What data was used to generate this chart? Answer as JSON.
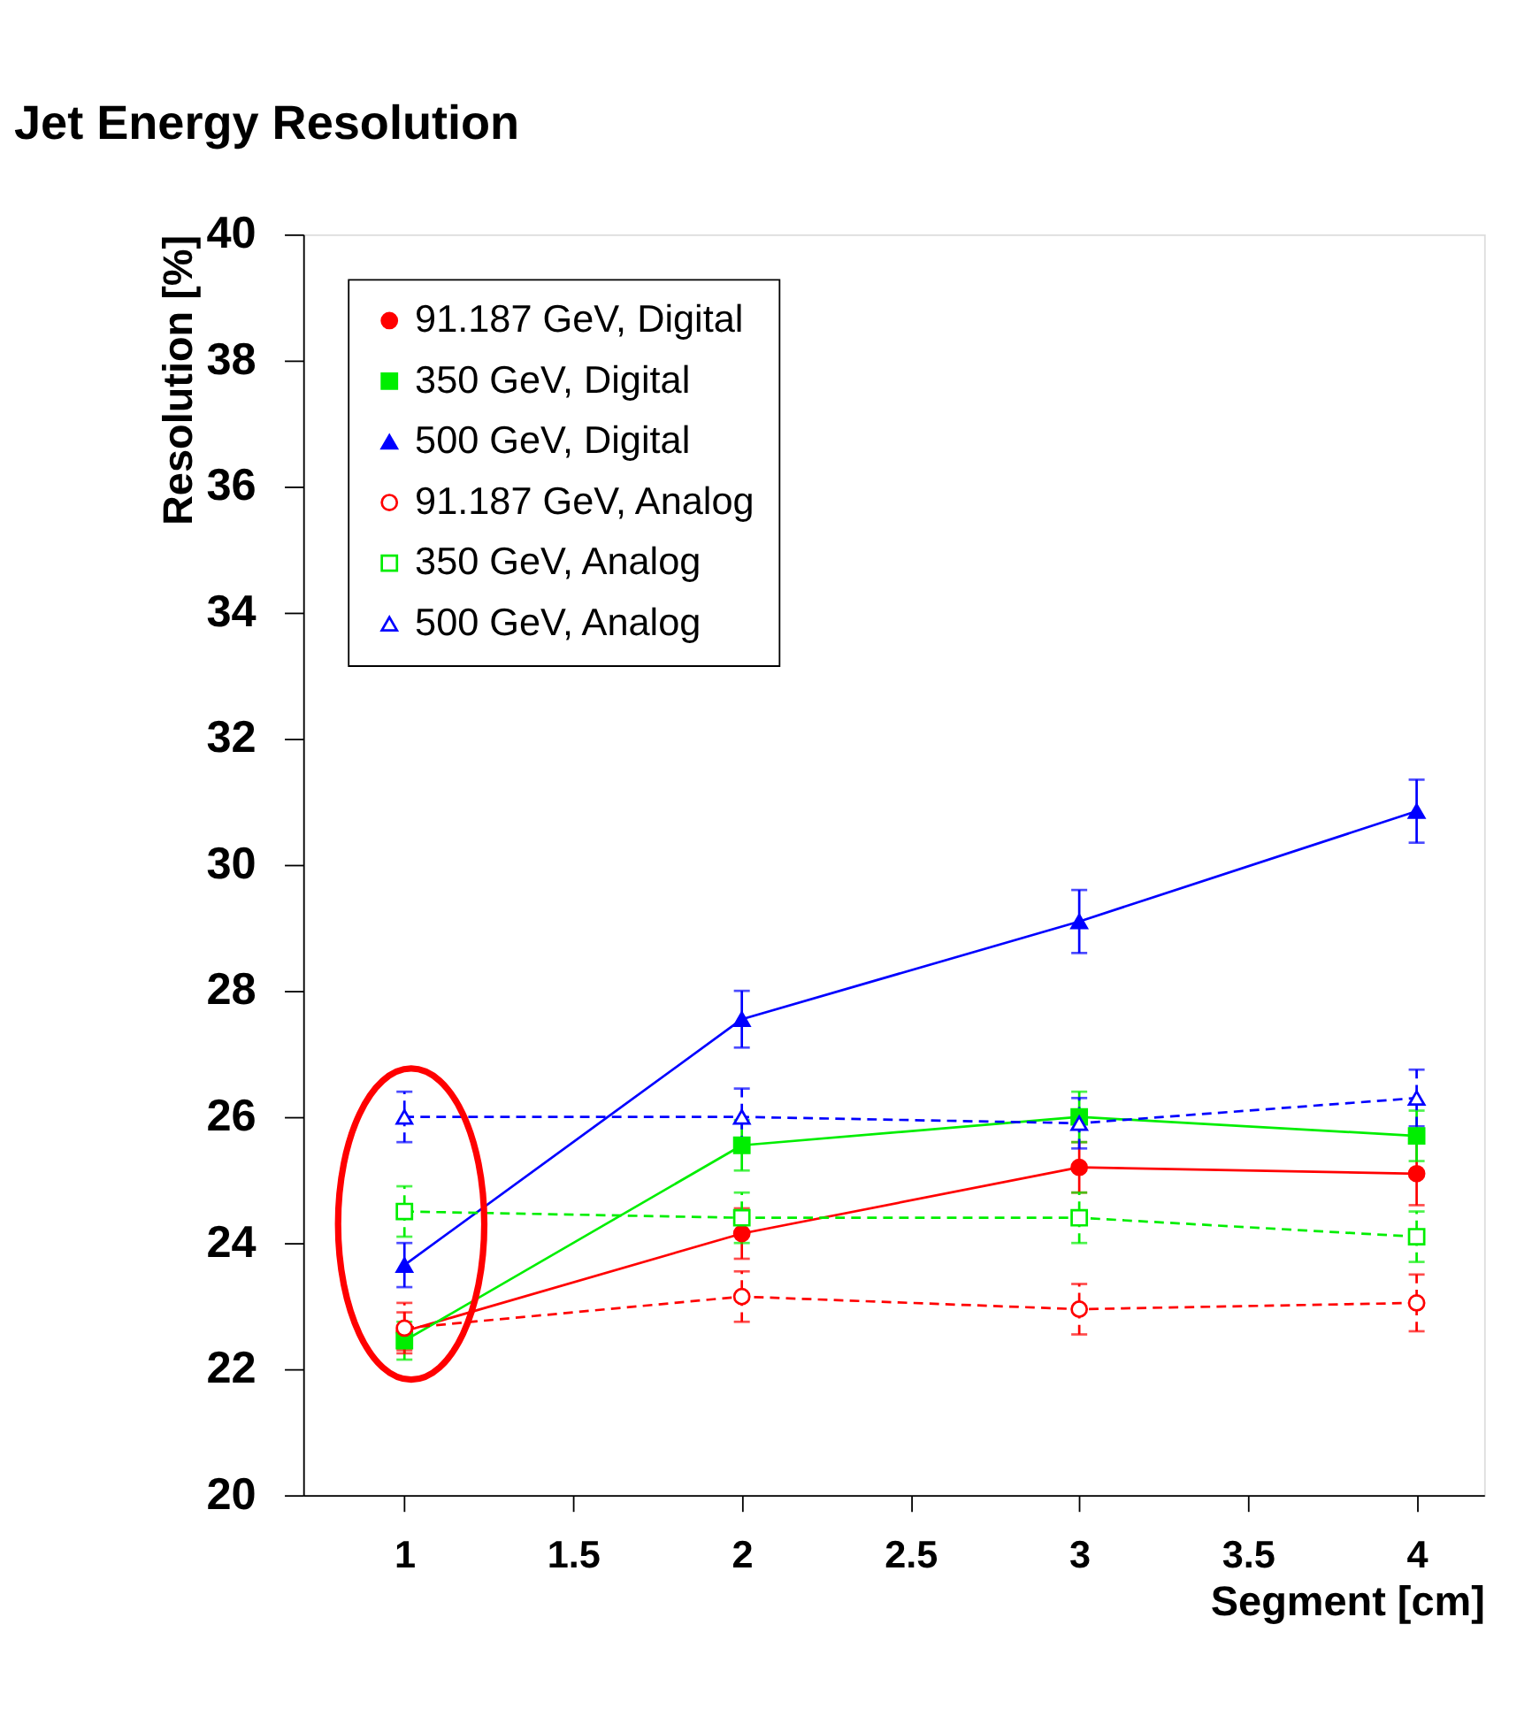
{
  "chart_data": {
    "type": "line",
    "title": "Jet Energy Resolution",
    "xlabel": "Segment [cm]",
    "ylabel": "Resolution [%]",
    "x": [
      1,
      2,
      3,
      4
    ],
    "xlim": [
      0.7,
      4.2
    ],
    "xticks": [
      1,
      1.5,
      2,
      2.5,
      3,
      3.5,
      4
    ],
    "ylim": [
      20,
      40
    ],
    "yticks": [
      20,
      22,
      24,
      26,
      28,
      30,
      32,
      34,
      36,
      38,
      40
    ],
    "grid": false,
    "legend": "top left",
    "series": [
      {
        "name": "91.187 GeV, Digital",
        "color": "#ff0000",
        "marker": "circle",
        "line_style": "solid",
        "values": [
          22.6,
          24.15,
          25.2,
          25.1
        ],
        "errors": [
          0.3,
          0.4,
          0.4,
          0.5
        ]
      },
      {
        "name": "350 GeV, Digital",
        "color": "#00ee00",
        "marker": "square",
        "line_style": "solid",
        "values": [
          22.45,
          25.55,
          26.0,
          25.7
        ],
        "errors": [
          0.3,
          0.4,
          0.4,
          0.4
        ]
      },
      {
        "name": "500 GeV, Digital",
        "color": "#0000ff",
        "marker": "triangle",
        "line_style": "solid",
        "values": [
          23.65,
          27.55,
          29.1,
          30.85
        ],
        "errors": [
          0.35,
          0.45,
          0.5,
          0.5
        ]
      },
      {
        "name": "91.187 GeV, Analog",
        "color": "#ff0000",
        "marker": "circle",
        "line_style": "dashed",
        "values": [
          22.65,
          23.15,
          22.95,
          23.05
        ],
        "errors": [
          0.4,
          0.4,
          0.4,
          0.45
        ]
      },
      {
        "name": "350 GeV, Analog",
        "color": "#00ee00",
        "marker": "square",
        "line_style": "dashed",
        "values": [
          24.5,
          24.4,
          24.4,
          24.1
        ],
        "errors": [
          0.4,
          0.4,
          0.4,
          0.4
        ]
      },
      {
        "name": "500 GeV, Analog",
        "color": "#0000ff",
        "marker": "triangle",
        "line_style": "dashed",
        "values": [
          26.0,
          26.0,
          25.9,
          26.3
        ],
        "errors": [
          0.4,
          0.45,
          0.4,
          0.45
        ]
      }
    ]
  }
}
